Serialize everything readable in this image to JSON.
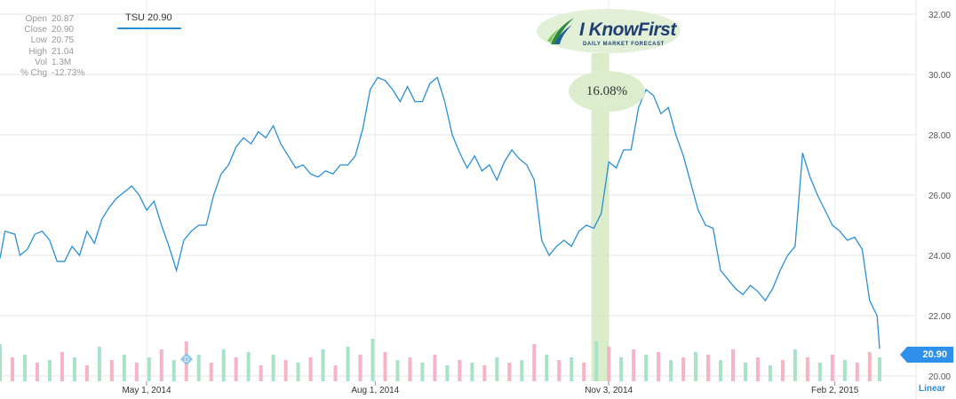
{
  "quote": {
    "symbol_label": "TSU 20.90",
    "rows": [
      {
        "label": "Open",
        "value": "20.87"
      },
      {
        "label": "Close",
        "value": "20.90"
      },
      {
        "label": "Low",
        "value": "20.75"
      },
      {
        "label": "High",
        "value": "21.04"
      },
      {
        "label": "Vol",
        "value": "1.3M"
      },
      {
        "label": "% Chg",
        "value": "-12.73%"
      }
    ]
  },
  "logo": {
    "name": "I KnowFirst",
    "tagline": "DAILY MARKET FORECAST"
  },
  "forecast_bubble": "16.08%",
  "last_price_badge": "20.90",
  "scale_label": "Linear",
  "event_marker": "D",
  "colors": {
    "price_line": "#2a8fd6",
    "volume_up": "#a8e3c8",
    "volume_down": "#f5b5c5",
    "highlight_band": "#cfe6b8",
    "badge": "#2e90ea"
  },
  "chart_data": {
    "type": "line",
    "x_tick_labels": [
      "May 1, 2014",
      "Aug 1, 2014",
      "Nov 3, 2014",
      "Feb 2, 2015"
    ],
    "y_tick_labels": [
      "32.00",
      "30.00",
      "28.00",
      "26.00",
      "24.00",
      "22.00",
      "20.00"
    ],
    "ylim": [
      20,
      32
    ],
    "grid": true,
    "x_range": [
      "2014-03-03",
      "2015-02-20"
    ],
    "highlight_period": {
      "start": "2014-10-27",
      "end": "2014-11-03"
    },
    "series": [
      {
        "values": [
          [
            "2014-03-03",
            23.9
          ],
          [
            "2014-03-05",
            24.8
          ],
          [
            "2014-03-09",
            24.7
          ],
          [
            "2014-03-11",
            24.0
          ],
          [
            "2014-03-14",
            24.2
          ],
          [
            "2014-03-17",
            24.7
          ],
          [
            "2014-03-20",
            24.8
          ],
          [
            "2014-03-23",
            24.5
          ],
          [
            "2014-03-26",
            23.8
          ],
          [
            "2014-03-29",
            23.8
          ],
          [
            "2014-04-01",
            24.3
          ],
          [
            "2014-04-04",
            24.0
          ],
          [
            "2014-04-07",
            24.8
          ],
          [
            "2014-04-10",
            24.4
          ],
          [
            "2014-04-13",
            25.2
          ],
          [
            "2014-04-16",
            25.6
          ],
          [
            "2014-04-19",
            25.9
          ],
          [
            "2014-04-22",
            26.1
          ],
          [
            "2014-04-25",
            26.3
          ],
          [
            "2014-04-28",
            26.0
          ],
          [
            "2014-05-01",
            25.5
          ],
          [
            "2014-05-04",
            25.8
          ],
          [
            "2014-05-07",
            25.0
          ],
          [
            "2014-05-10",
            24.3
          ],
          [
            "2014-05-13",
            23.5
          ],
          [
            "2014-05-16",
            24.5
          ],
          [
            "2014-05-19",
            24.8
          ],
          [
            "2014-05-22",
            25.0
          ],
          [
            "2014-05-25",
            25.0
          ],
          [
            "2014-05-28",
            26.0
          ],
          [
            "2014-05-31",
            26.7
          ],
          [
            "2014-06-03",
            27.0
          ],
          [
            "2014-06-06",
            27.6
          ],
          [
            "2014-06-09",
            27.9
          ],
          [
            "2014-06-12",
            27.7
          ],
          [
            "2014-06-15",
            28.1
          ],
          [
            "2014-06-18",
            27.9
          ],
          [
            "2014-06-21",
            28.3
          ],
          [
            "2014-06-24",
            27.7
          ],
          [
            "2014-06-27",
            27.3
          ],
          [
            "2014-06-30",
            26.9
          ],
          [
            "2014-07-03",
            27.0
          ],
          [
            "2014-07-06",
            26.7
          ],
          [
            "2014-07-09",
            26.6
          ],
          [
            "2014-07-12",
            26.8
          ],
          [
            "2014-07-15",
            26.7
          ],
          [
            "2014-07-18",
            27.0
          ],
          [
            "2014-07-21",
            27.0
          ],
          [
            "2014-07-24",
            27.3
          ],
          [
            "2014-07-27",
            28.2
          ],
          [
            "2014-07-30",
            29.5
          ],
          [
            "2014-08-02",
            29.9
          ],
          [
            "2014-08-05",
            29.8
          ],
          [
            "2014-08-08",
            29.5
          ],
          [
            "2014-08-11",
            29.1
          ],
          [
            "2014-08-14",
            29.6
          ],
          [
            "2014-08-17",
            29.1
          ],
          [
            "2014-08-20",
            29.1
          ],
          [
            "2014-08-23",
            29.7
          ],
          [
            "2014-08-26",
            29.9
          ],
          [
            "2014-08-29",
            29.1
          ],
          [
            "2014-09-01",
            28.0
          ],
          [
            "2014-09-04",
            27.4
          ],
          [
            "2014-09-07",
            26.9
          ],
          [
            "2014-09-10",
            27.3
          ],
          [
            "2014-09-13",
            26.8
          ],
          [
            "2014-09-16",
            27.0
          ],
          [
            "2014-09-19",
            26.5
          ],
          [
            "2014-09-22",
            27.1
          ],
          [
            "2014-09-25",
            27.5
          ],
          [
            "2014-09-28",
            27.2
          ],
          [
            "2014-10-01",
            27.0
          ],
          [
            "2014-10-04",
            26.5
          ],
          [
            "2014-10-07",
            24.5
          ],
          [
            "2014-10-10",
            24.0
          ],
          [
            "2014-10-13",
            24.3
          ],
          [
            "2014-10-16",
            24.5
          ],
          [
            "2014-10-19",
            24.3
          ],
          [
            "2014-10-22",
            24.8
          ],
          [
            "2014-10-25",
            25.0
          ],
          [
            "2014-10-28",
            24.9
          ],
          [
            "2014-10-31",
            25.4
          ],
          [
            "2014-11-03",
            27.1
          ],
          [
            "2014-11-06",
            26.9
          ],
          [
            "2014-11-09",
            27.5
          ],
          [
            "2014-11-12",
            27.5
          ],
          [
            "2014-11-15",
            28.9
          ],
          [
            "2014-11-18",
            29.5
          ],
          [
            "2014-11-21",
            29.3
          ],
          [
            "2014-11-24",
            28.7
          ],
          [
            "2014-11-27",
            28.9
          ],
          [
            "2014-11-30",
            28.0
          ],
          [
            "2014-12-03",
            27.3
          ],
          [
            "2014-12-06",
            26.4
          ],
          [
            "2014-12-09",
            25.5
          ],
          [
            "2014-12-12",
            25.0
          ],
          [
            "2014-12-15",
            24.9
          ],
          [
            "2014-12-18",
            23.5
          ],
          [
            "2014-12-21",
            23.2
          ],
          [
            "2014-12-24",
            22.9
          ],
          [
            "2014-12-27",
            22.7
          ],
          [
            "2014-12-30",
            23.0
          ],
          [
            "2015-01-02",
            22.8
          ],
          [
            "2015-01-05",
            22.5
          ],
          [
            "2015-01-08",
            22.9
          ],
          [
            "2015-01-11",
            23.5
          ],
          [
            "2015-01-14",
            24.0
          ],
          [
            "2015-01-17",
            24.3
          ],
          [
            "2015-01-20",
            27.4
          ],
          [
            "2015-01-23",
            26.6
          ],
          [
            "2015-01-26",
            26.0
          ],
          [
            "2015-01-29",
            25.5
          ],
          [
            "2015-02-01",
            25.0
          ],
          [
            "2015-02-04",
            24.8
          ],
          [
            "2015-02-07",
            24.5
          ],
          [
            "2015-02-10",
            24.6
          ],
          [
            "2015-02-13",
            24.2
          ],
          [
            "2015-02-16",
            22.5
          ],
          [
            "2015-02-19",
            22.0
          ],
          [
            "2015-02-20",
            20.9
          ]
        ]
      }
    ],
    "volume": {
      "bars": [
        {
          "x": "2014-03-03",
          "v": 0.14,
          "dir": "up"
        },
        {
          "x": "2014-03-08",
          "v": 0.09,
          "dir": "down"
        },
        {
          "x": "2014-03-13",
          "v": 0.1,
          "dir": "up"
        },
        {
          "x": "2014-03-18",
          "v": 0.07,
          "dir": "down"
        },
        {
          "x": "2014-03-23",
          "v": 0.08,
          "dir": "up"
        },
        {
          "x": "2014-03-28",
          "v": 0.11,
          "dir": "down"
        },
        {
          "x": "2014-04-02",
          "v": 0.09,
          "dir": "up"
        },
        {
          "x": "2014-04-07",
          "v": 0.06,
          "dir": "down"
        },
        {
          "x": "2014-04-12",
          "v": 0.13,
          "dir": "up"
        },
        {
          "x": "2014-04-17",
          "v": 0.08,
          "dir": "down"
        },
        {
          "x": "2014-04-22",
          "v": 0.1,
          "dir": "up"
        },
        {
          "x": "2014-04-27",
          "v": 0.07,
          "dir": "down"
        },
        {
          "x": "2014-05-02",
          "v": 0.09,
          "dir": "up"
        },
        {
          "x": "2014-05-07",
          "v": 0.12,
          "dir": "down"
        },
        {
          "x": "2014-05-12",
          "v": 0.08,
          "dir": "up"
        },
        {
          "x": "2014-05-17",
          "v": 0.15,
          "dir": "down"
        },
        {
          "x": "2014-05-22",
          "v": 0.1,
          "dir": "up"
        },
        {
          "x": "2014-05-27",
          "v": 0.07,
          "dir": "down"
        },
        {
          "x": "2014-06-01",
          "v": 0.12,
          "dir": "up"
        },
        {
          "x": "2014-06-06",
          "v": 0.09,
          "dir": "down"
        },
        {
          "x": "2014-06-11",
          "v": 0.11,
          "dir": "up"
        },
        {
          "x": "2014-06-16",
          "v": 0.06,
          "dir": "down"
        },
        {
          "x": "2014-06-21",
          "v": 0.1,
          "dir": "up"
        },
        {
          "x": "2014-06-26",
          "v": 0.08,
          "dir": "down"
        },
        {
          "x": "2014-07-01",
          "v": 0.07,
          "dir": "up"
        },
        {
          "x": "2014-07-06",
          "v": 0.09,
          "dir": "down"
        },
        {
          "x": "2014-07-11",
          "v": 0.12,
          "dir": "up"
        },
        {
          "x": "2014-07-16",
          "v": 0.06,
          "dir": "down"
        },
        {
          "x": "2014-07-21",
          "v": 0.13,
          "dir": "up"
        },
        {
          "x": "2014-07-26",
          "v": 0.1,
          "dir": "down"
        },
        {
          "x": "2014-07-31",
          "v": 0.16,
          "dir": "up"
        },
        {
          "x": "2014-08-05",
          "v": 0.11,
          "dir": "down"
        },
        {
          "x": "2014-08-10",
          "v": 0.08,
          "dir": "up"
        },
        {
          "x": "2014-08-15",
          "v": 0.09,
          "dir": "down"
        },
        {
          "x": "2014-08-20",
          "v": 0.07,
          "dir": "up"
        },
        {
          "x": "2014-08-25",
          "v": 0.1,
          "dir": "down"
        },
        {
          "x": "2014-08-30",
          "v": 0.06,
          "dir": "up"
        },
        {
          "x": "2014-09-04",
          "v": 0.08,
          "dir": "down"
        },
        {
          "x": "2014-09-09",
          "v": 0.07,
          "dir": "up"
        },
        {
          "x": "2014-09-14",
          "v": 0.06,
          "dir": "down"
        },
        {
          "x": "2014-09-19",
          "v": 0.09,
          "dir": "up"
        },
        {
          "x": "2014-09-24",
          "v": 0.07,
          "dir": "down"
        },
        {
          "x": "2014-09-29",
          "v": 0.08,
          "dir": "up"
        },
        {
          "x": "2014-10-04",
          "v": 0.14,
          "dir": "down"
        },
        {
          "x": "2014-10-09",
          "v": 0.1,
          "dir": "up"
        },
        {
          "x": "2014-10-14",
          "v": 0.08,
          "dir": "down"
        },
        {
          "x": "2014-10-19",
          "v": 0.09,
          "dir": "up"
        },
        {
          "x": "2014-10-24",
          "v": 0.07,
          "dir": "down"
        },
        {
          "x": "2014-10-29",
          "v": 0.15,
          "dir": "up"
        },
        {
          "x": "2014-11-03",
          "v": 0.13,
          "dir": "down"
        },
        {
          "x": "2014-11-08",
          "v": 0.09,
          "dir": "up"
        },
        {
          "x": "2014-11-13",
          "v": 0.12,
          "dir": "down"
        },
        {
          "x": "2014-11-18",
          "v": 0.1,
          "dir": "up"
        },
        {
          "x": "2014-11-23",
          "v": 0.11,
          "dir": "down"
        },
        {
          "x": "2014-11-28",
          "v": 0.08,
          "dir": "up"
        },
        {
          "x": "2014-12-03",
          "v": 0.09,
          "dir": "down"
        },
        {
          "x": "2014-12-08",
          "v": 0.11,
          "dir": "up"
        },
        {
          "x": "2014-12-13",
          "v": 0.1,
          "dir": "down"
        },
        {
          "x": "2014-12-18",
          "v": 0.08,
          "dir": "up"
        },
        {
          "x": "2014-12-23",
          "v": 0.12,
          "dir": "down"
        },
        {
          "x": "2014-12-28",
          "v": 0.07,
          "dir": "up"
        },
        {
          "x": "2015-01-02",
          "v": 0.09,
          "dir": "down"
        },
        {
          "x": "2015-01-07",
          "v": 0.06,
          "dir": "up"
        },
        {
          "x": "2015-01-12",
          "v": 0.08,
          "dir": "down"
        },
        {
          "x": "2015-01-17",
          "v": 0.12,
          "dir": "up"
        },
        {
          "x": "2015-01-22",
          "v": 0.09,
          "dir": "down"
        },
        {
          "x": "2015-01-27",
          "v": 0.07,
          "dir": "up"
        },
        {
          "x": "2015-02-01",
          "v": 0.1,
          "dir": "down"
        },
        {
          "x": "2015-02-06",
          "v": 0.08,
          "dir": "up"
        },
        {
          "x": "2015-02-11",
          "v": 0.07,
          "dir": "down"
        },
        {
          "x": "2015-02-16",
          "v": 0.11,
          "dir": "down"
        },
        {
          "x": "2015-02-20",
          "v": 0.09,
          "dir": "up"
        }
      ]
    }
  }
}
